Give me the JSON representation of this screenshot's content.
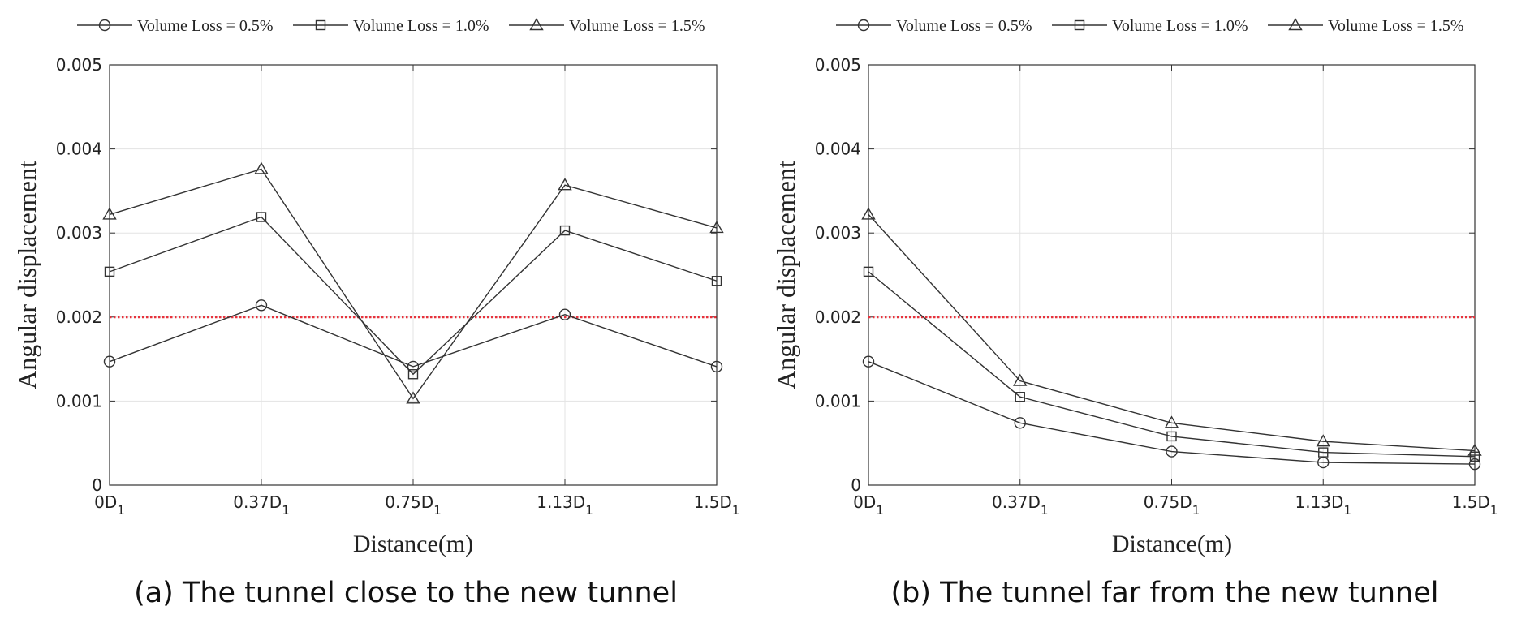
{
  "chart_data": [
    {
      "type": "line",
      "caption": "(a) The tunnel close to the new tunnel",
      "xlabel": "Distance(m)",
      "ylabel": "Angular displacement",
      "categories": [
        {
          "base": "0D",
          "sub": "1"
        },
        {
          "base": "0.37D",
          "sub": "1"
        },
        {
          "base": "0.75D",
          "sub": "1"
        },
        {
          "base": "1.13D",
          "sub": "1"
        },
        {
          "base": "1.5D",
          "sub": "1"
        }
      ],
      "ylim": [
        0,
        0.005
      ],
      "yticks": [
        "0",
        "0.001",
        "0.002",
        "0.003",
        "0.004",
        "0.005"
      ],
      "grid": true,
      "legend_position": "top",
      "reference_line": {
        "value": 0.002,
        "color": "#e8323c",
        "style": "dotted"
      },
      "series": [
        {
          "name": "Volume Loss = 0.5%",
          "marker": "circle",
          "values": [
            0.00147,
            0.00214,
            0.00141,
            0.00203,
            0.00141
          ]
        },
        {
          "name": "Volume Loss = 1.0%",
          "marker": "square",
          "values": [
            0.00254,
            0.00319,
            0.00132,
            0.00303,
            0.00243
          ]
        },
        {
          "name": "Volume Loss = 1.5%",
          "marker": "triangle",
          "values": [
            0.00322,
            0.00376,
            0.00103,
            0.00357,
            0.00306
          ]
        }
      ]
    },
    {
      "type": "line",
      "caption": "(b) The tunnel far from the new tunnel",
      "xlabel": "Distance(m)",
      "ylabel": "Angular displacement",
      "categories": [
        {
          "base": "0D",
          "sub": "1"
        },
        {
          "base": "0.37D",
          "sub": "1"
        },
        {
          "base": "0.75D",
          "sub": "1"
        },
        {
          "base": "1.13D",
          "sub": "1"
        },
        {
          "base": "1.5D",
          "sub": "1"
        }
      ],
      "ylim": [
        0,
        0.005
      ],
      "yticks": [
        "0",
        "0.001",
        "0.002",
        "0.003",
        "0.004",
        "0.005"
      ],
      "grid": true,
      "legend_position": "top",
      "reference_line": {
        "value": 0.002,
        "color": "#e8323c",
        "style": "dotted"
      },
      "series": [
        {
          "name": "Volume Loss = 0.5%",
          "marker": "circle",
          "values": [
            0.00147,
            0.00074,
            0.0004,
            0.00027,
            0.00025
          ]
        },
        {
          "name": "Volume Loss = 1.0%",
          "marker": "square",
          "values": [
            0.00254,
            0.00105,
            0.00058,
            0.00039,
            0.00034
          ]
        },
        {
          "name": "Volume Loss = 1.5%",
          "marker": "triangle",
          "values": [
            0.00322,
            0.00124,
            0.00074,
            0.00052,
            0.00041
          ]
        }
      ]
    }
  ]
}
